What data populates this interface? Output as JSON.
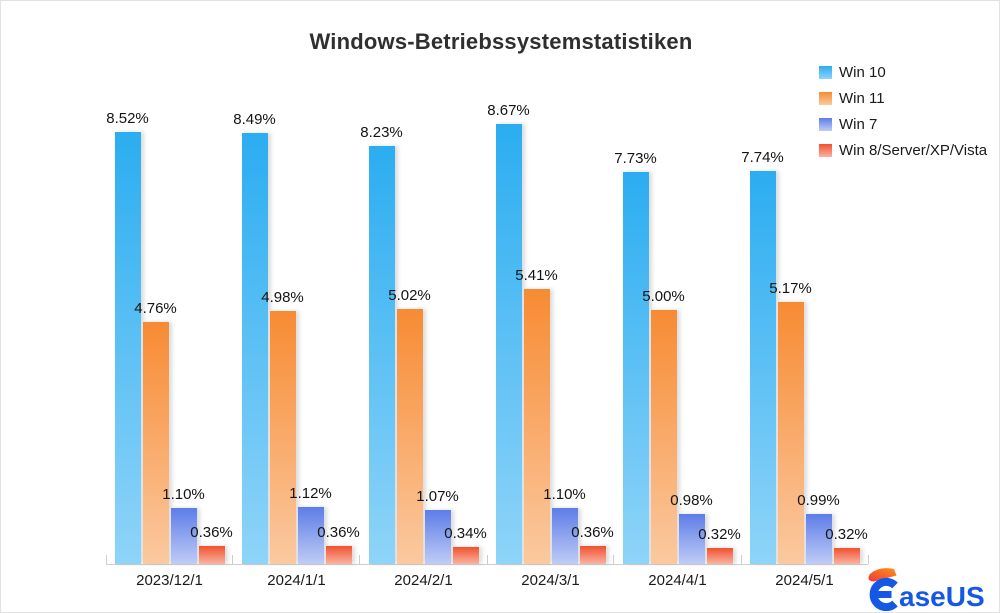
{
  "page": {
    "title": "Windows-Betriebssystemstatistiken"
  },
  "chart_data": {
    "type": "bar",
    "title": "Windows-Betriebssystemstatistiken",
    "categories": [
      "2023/12/1",
      "2024/1/1",
      "2024/2/1",
      "2024/3/1",
      "2024/4/1",
      "2024/5/1"
    ],
    "series": [
      {
        "name": "Win 10",
        "values": [
          8.52,
          8.49,
          8.23,
          8.67,
          7.73,
          7.74
        ],
        "labels": [
          "8.52%",
          "8.49%",
          "8.23%",
          "8.67%",
          "7.73%",
          "7.74%"
        ],
        "color_top": "#2badf1",
        "color_bottom": "#8fd4f8"
      },
      {
        "name": "Win 11",
        "values": [
          4.76,
          4.98,
          5.02,
          5.41,
          5.0,
          5.17
        ],
        "labels": [
          "4.76%",
          "4.98%",
          "5.02%",
          "5.41%",
          "5.00%",
          "5.17%"
        ],
        "color_top": "#f78b33",
        "color_bottom": "#fbc9a0"
      },
      {
        "name": "Win 7",
        "values": [
          1.1,
          1.12,
          1.07,
          1.1,
          0.98,
          0.99
        ],
        "labels": [
          "1.10%",
          "1.12%",
          "1.07%",
          "1.10%",
          "0.98%",
          "0.99%"
        ],
        "color_top": "#5d7de8",
        "color_bottom": "#c0ccf5"
      },
      {
        "name": "Win 8/Server/XP/Vista",
        "values": [
          0.36,
          0.36,
          0.34,
          0.36,
          0.32,
          0.32
        ],
        "labels": [
          "0.36%",
          "0.36%",
          "0.34%",
          "0.36%",
          "0.32%",
          "0.32%"
        ],
        "color_top": "#f15130",
        "color_bottom": "#f9b3a1"
      }
    ],
    "ylim": [
      0,
      9.2
    ],
    "grid": false,
    "legend_position": "top-right",
    "value_suffix": "%",
    "xlabel": "",
    "ylabel": ""
  },
  "branding": {
    "brand": "EaseUS",
    "logo_text_suffix": "aseUS"
  }
}
